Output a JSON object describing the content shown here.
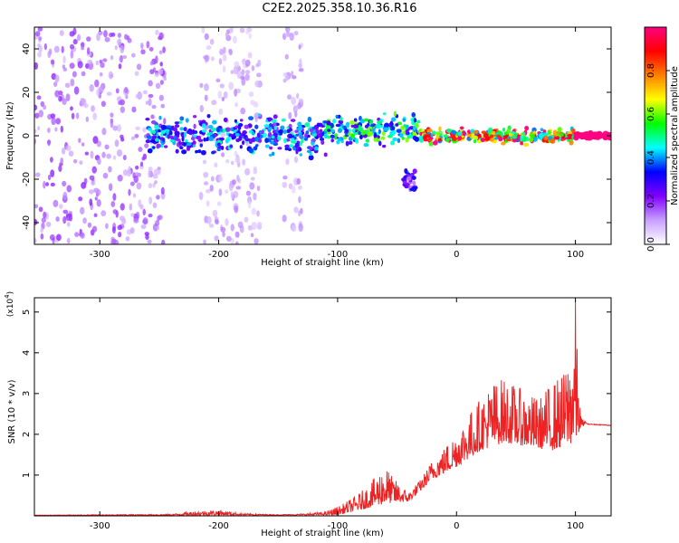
{
  "title": "C2E2.2025.358.10.36.R16",
  "chart_data": [
    {
      "type": "heatmap",
      "id": "spectrogram",
      "xlabel": "Height of straight line (km)",
      "ylabel": "Frequency (Hz)",
      "xlim": [
        -355,
        130
      ],
      "ylim": [
        -50,
        50
      ],
      "xticks": [
        -300,
        -200,
        -100,
        0,
        100
      ],
      "yticks": [
        -40,
        -20,
        0,
        20,
        40
      ],
      "colorbar": {
        "label": "Normalized spectral amplitude",
        "range": [
          0.0,
          1.0
        ],
        "ticks": [
          0.0,
          0.2,
          0.4,
          0.6,
          0.8
        ],
        "colors": [
          "#ffffff",
          "#c8a0ff",
          "#8000ff",
          "#0000ff",
          "#00ffff",
          "#00ff00",
          "#ffff00",
          "#ff8000",
          "#ff0000",
          "#ff0080"
        ]
      },
      "features": [
        {
          "name": "diffuse noise",
          "x_range": [
            -355,
            -245
          ],
          "freq_range": [
            -50,
            50
          ],
          "amplitude": 0.15
        },
        {
          "name": "diffuse noise",
          "x_range": [
            -215,
            -165
          ],
          "freq_range": [
            -50,
            50
          ],
          "amplitude": 0.1
        },
        {
          "name": "diffuse noise",
          "x_range": [
            -145,
            -130
          ],
          "freq_range": [
            -50,
            50
          ],
          "amplitude": 0.1
        },
        {
          "name": "signal band",
          "x_range": [
            -260,
            -110
          ],
          "freq_center": 0,
          "freq_width": 8,
          "amplitude": 0.35
        },
        {
          "name": "signal band",
          "x_range": [
            -110,
            -30
          ],
          "freq_center": 3,
          "freq_width": 6,
          "amplitude": 0.45
        },
        {
          "name": "side branch",
          "x_range": [
            -45,
            -33
          ],
          "freq_range": [
            -25,
            -16
          ],
          "amplitude": 0.25
        },
        {
          "name": "strong line",
          "x_range": [
            -30,
            100
          ],
          "freq_center": 0,
          "freq_width": 3,
          "amplitude": 0.75
        },
        {
          "name": "carrier",
          "x_range": [
            100,
            130
          ],
          "freq_center": 0,
          "freq_width": 1.5,
          "amplitude": 1.0
        }
      ]
    },
    {
      "type": "line",
      "id": "snr",
      "xlabel": "Height of straight line (km)",
      "ylabel": "SNR (10 * v/v)",
      "scale_label": "(x10",
      "scale_exp": "4",
      "scale_close": ")",
      "xlim": [
        -355,
        130
      ],
      "ylim": [
        0,
        5.35
      ],
      "xticks": [
        -300,
        -200,
        -100,
        0,
        100
      ],
      "yticks": [
        1,
        2,
        3,
        4,
        5
      ],
      "color": "#ee2222",
      "envelope": [
        [
          -355,
          0.02
        ],
        [
          -240,
          0.04
        ],
        [
          -220,
          0.12
        ],
        [
          -200,
          0.15
        ],
        [
          -180,
          0.06
        ],
        [
          -150,
          0.03
        ],
        [
          -130,
          0.05
        ],
        [
          -110,
          0.1
        ],
        [
          -95,
          0.3
        ],
        [
          -80,
          0.6
        ],
        [
          -70,
          0.9
        ],
        [
          -60,
          1.3
        ],
        [
          -55,
          1.0
        ],
        [
          -45,
          0.7
        ],
        [
          -40,
          0.6
        ],
        [
          -30,
          0.9
        ],
        [
          -20,
          1.4
        ],
        [
          -10,
          1.7
        ],
        [
          0,
          2.1
        ],
        [
          10,
          2.5
        ],
        [
          20,
          2.9
        ],
        [
          30,
          3.3
        ],
        [
          40,
          3.4
        ],
        [
          50,
          3.2
        ],
        [
          60,
          3.0
        ],
        [
          70,
          2.9
        ],
        [
          80,
          3.3
        ],
        [
          90,
          3.5
        ],
        [
          97,
          4.3
        ],
        [
          100,
          5.35
        ],
        [
          103,
          3.0
        ],
        [
          105,
          2.4
        ],
        [
          110,
          2.25
        ],
        [
          130,
          2.22
        ]
      ],
      "baseline": [
        [
          -355,
          0.01
        ],
        [
          -100,
          0.02
        ],
        [
          -80,
          0.15
        ],
        [
          -60,
          0.3
        ],
        [
          -40,
          0.35
        ],
        [
          -20,
          0.9
        ],
        [
          0,
          1.2
        ],
        [
          20,
          1.6
        ],
        [
          40,
          1.8
        ],
        [
          60,
          1.7
        ],
        [
          80,
          1.6
        ],
        [
          100,
          1.8
        ],
        [
          105,
          2.2
        ],
        [
          130,
          2.22
        ]
      ]
    }
  ]
}
